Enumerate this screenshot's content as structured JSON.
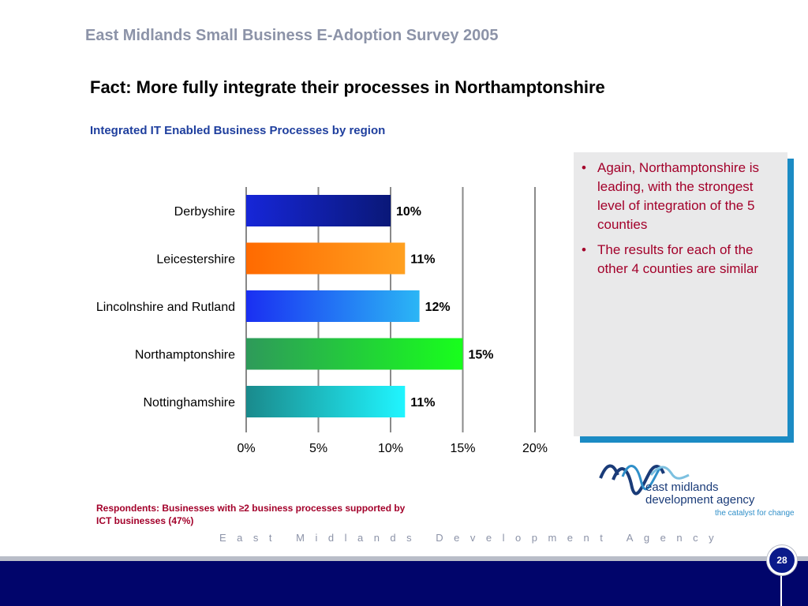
{
  "header": {
    "survey_title": "East Midlands Small Business E-Adoption Survey 2005",
    "fact_title": "Fact: More fully integrate their processes in Northamptonshire"
  },
  "chart_data": {
    "type": "bar",
    "orientation": "horizontal",
    "title": "Integrated IT Enabled Business Processes by region",
    "categories": [
      "Derbyshire",
      "Leicestershire",
      "Lincolnshire and Rutland",
      "Northamptonshire",
      "Nottinghamshire"
    ],
    "values": [
      10,
      11,
      12,
      15,
      11
    ],
    "data_labels": [
      "10%",
      "11%",
      "12%",
      "15%",
      "11%"
    ],
    "xlim": [
      0,
      20
    ],
    "xticks": [
      0,
      5,
      10,
      15,
      20
    ],
    "xtick_labels": [
      "0%",
      "5%",
      "10%",
      "15%",
      "20%"
    ],
    "grid": true,
    "colors": [
      [
        "#1626d8",
        "#0a1878"
      ],
      [
        "#ff6a00",
        "#ffa020"
      ],
      [
        "#1a2ff2",
        "#2bb6f5"
      ],
      [
        "#2e9a5a",
        "#18ff1c"
      ],
      [
        "#1a8a8c",
        "#20f5ff"
      ]
    ]
  },
  "bullets": [
    "Again, Northamptonshire is leading, with the strongest level of integration of the 5 counties",
    "The results for each of the other 4 counties are similar"
  ],
  "footnote": "Respondents: Businesses with ≥2 business processes supported by ICT businesses (47%)",
  "logo": {
    "line1": "east midlands",
    "line2": "development agency",
    "tagline": "the catalyst for change"
  },
  "footer": {
    "agency": "East Midlands Development Agency",
    "page_number": "28"
  },
  "theme": {
    "navy": "#01056b",
    "accent_red": "#a3002a",
    "subtitle_blue": "#1f3f9e",
    "box_shadow_blue": "#1b8bc4"
  }
}
